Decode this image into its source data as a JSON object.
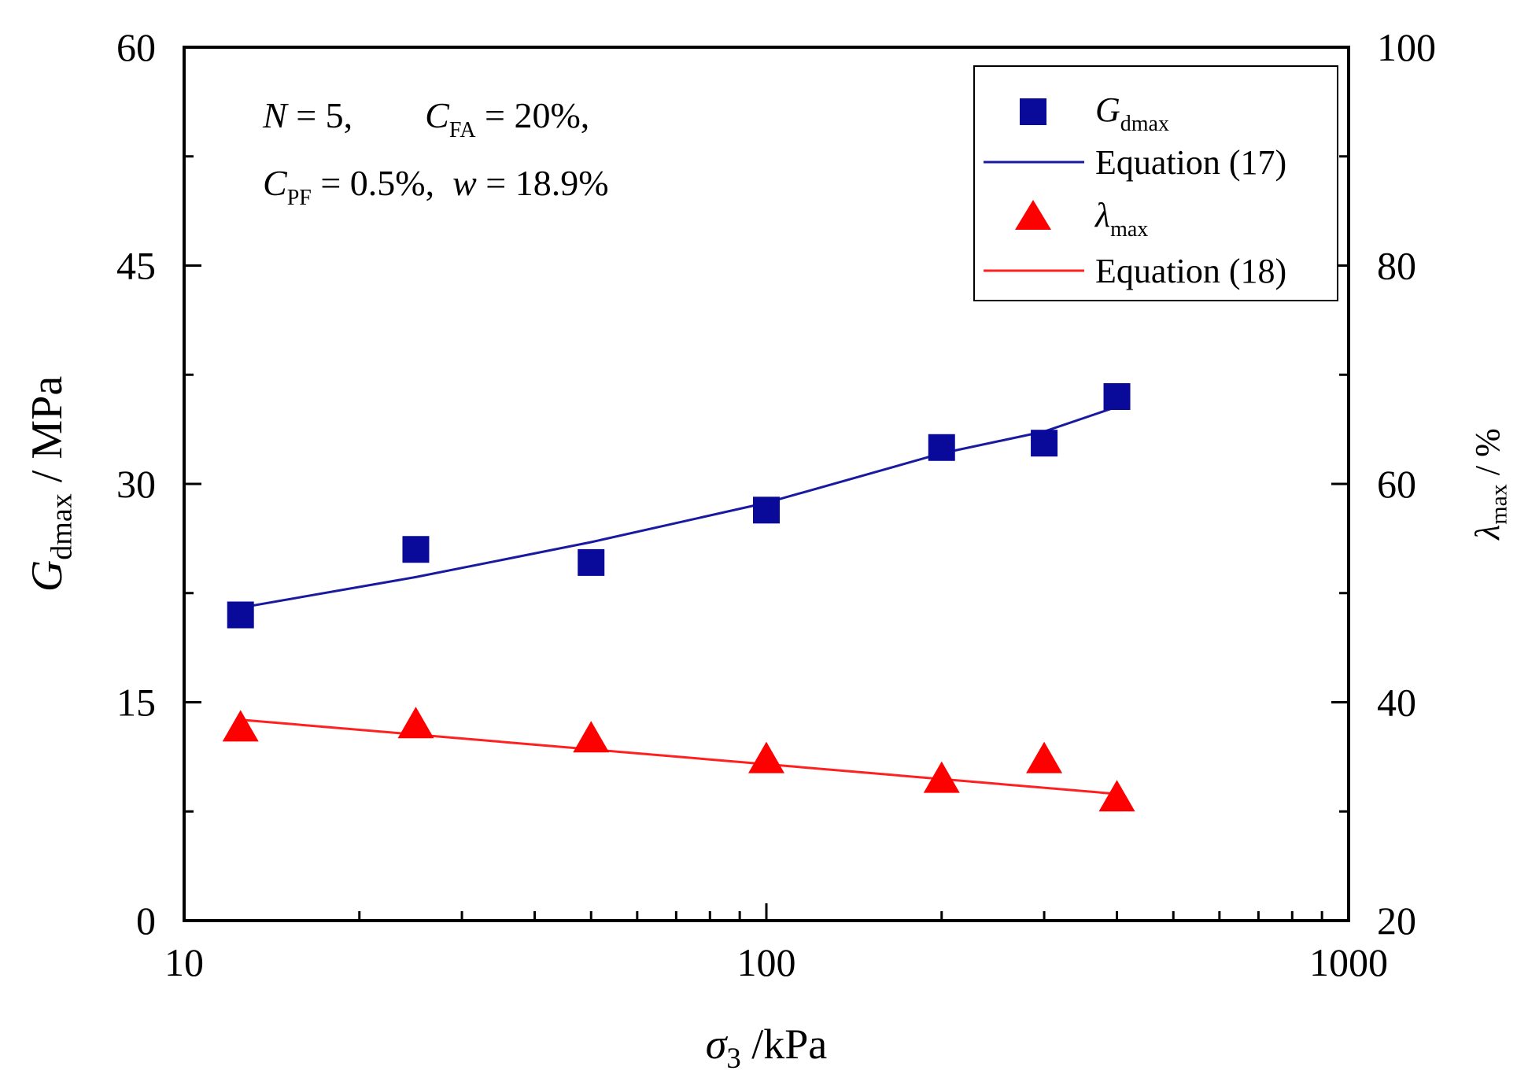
{
  "chart_data": {
    "type": "scatter",
    "x_axis": {
      "label_symbol": "σ",
      "label_sub": "3",
      "label_unit": " /kPa",
      "scale": "log",
      "range": [
        10,
        1000
      ],
      "ticks": [
        10,
        100,
        1000
      ],
      "tick_labels": [
        "10",
        "100",
        "1000"
      ]
    },
    "y_left": {
      "label_symbol": "G",
      "label_sub": "dmax",
      "label_unit": " / MPa",
      "range": [
        0,
        60
      ],
      "ticks": [
        0,
        15,
        30,
        45,
        60
      ],
      "tick_labels": [
        "0",
        "15",
        "30",
        "45",
        "60"
      ]
    },
    "y_right": {
      "label_symbol": "λ",
      "label_sub": "max",
      "label_unit": " / %",
      "range": [
        20,
        100
      ],
      "ticks": [
        20,
        40,
        60,
        80,
        100
      ],
      "tick_labels": [
        "20",
        "40",
        "60",
        "80",
        "100"
      ]
    },
    "annotation": {
      "line1": [
        {
          "t": "N",
          "i": true
        },
        {
          "t": " = 5,        "
        },
        {
          "t": "C",
          "i": true
        },
        {
          "t": "FA",
          "sub": true
        },
        {
          "t": " = 20%,"
        }
      ],
      "line2": [
        {
          "t": "C",
          "i": true
        },
        {
          "t": "PF",
          "sub": true
        },
        {
          "t": " = 0.5%,  "
        },
        {
          "t": "w",
          "i": true
        },
        {
          "t": " = 18.9%"
        }
      ]
    },
    "series": [
      {
        "name": "G",
        "name_sub": "dmax",
        "axis": "left",
        "marker": "square",
        "color": "#0a0a9a",
        "x": [
          12.5,
          25,
          50,
          100,
          200,
          300,
          400
        ],
        "y": [
          21.0,
          25.5,
          24.6,
          28.2,
          32.5,
          32.8,
          36.0
        ]
      },
      {
        "name": "Equation (17)",
        "axis": "left",
        "kind": "line",
        "color": "#1a1aa0",
        "x": [
          12.5,
          25,
          50,
          100,
          200,
          300,
          400
        ],
        "y": [
          21.5,
          23.6,
          26.0,
          28.7,
          32.1,
          33.6,
          35.3
        ]
      },
      {
        "name": "λ",
        "name_sub": "max",
        "axis": "right",
        "marker": "triangle",
        "color": "#ff0000",
        "x": [
          12.5,
          25,
          50,
          100,
          200,
          300,
          400
        ],
        "y": [
          37.5,
          37.8,
          36.5,
          34.6,
          32.8,
          34.6,
          31.1
        ]
      },
      {
        "name": "Equation (18)",
        "axis": "right",
        "kind": "line",
        "color": "#ff2020",
        "x": [
          12.5,
          400
        ],
        "y": [
          38.4,
          31.6
        ]
      }
    ],
    "legend_position": "top-right"
  }
}
